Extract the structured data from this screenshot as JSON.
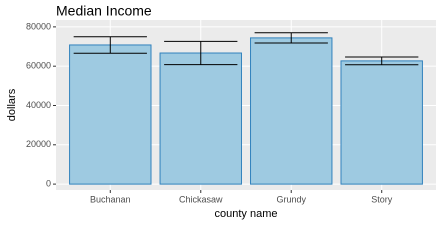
{
  "chart_data": {
    "type": "bar",
    "title": "Median Income",
    "x_label": "county name",
    "y_label": "dollars",
    "categories": [
      "Buchanan",
      "Chickasaw",
      "Grundy",
      "Story"
    ],
    "values": [
      70800,
      66700,
      74400,
      62700
    ],
    "errors": [
      4200,
      5900,
      2600,
      2000
    ],
    "color": "#9ecae1",
    "edge_color": "#3182bd",
    "ylim": [
      -3000,
      83500
    ],
    "yticks": [
      0,
      20000,
      40000,
      60000,
      80000
    ],
    "grid": true
  }
}
